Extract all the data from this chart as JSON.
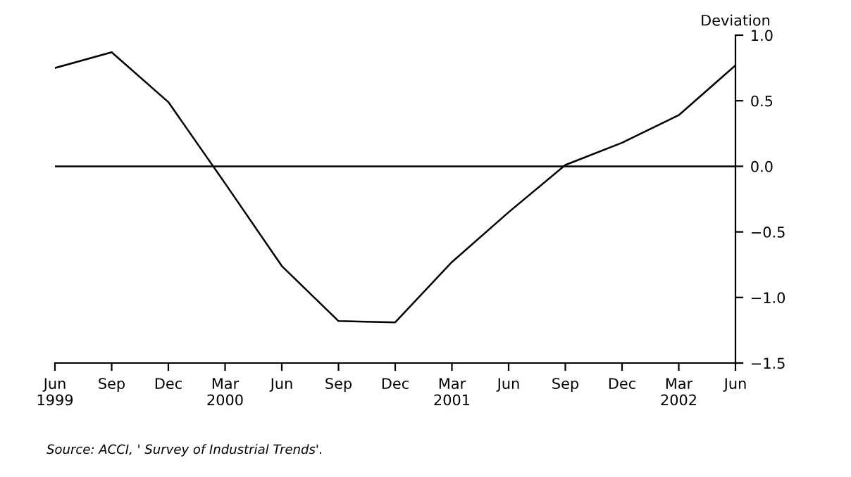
{
  "chart_data": {
    "type": "line",
    "ylabel": "Deviation",
    "categories": [
      "Jun\n1999",
      "Sep",
      "Dec",
      "Mar\n2000",
      "Jun",
      "Sep",
      "Dec",
      "Mar\n2001",
      "Jun",
      "Sep",
      "Dec",
      "Mar\n2002",
      "Jun"
    ],
    "series": [
      {
        "color": "#000000",
        "values": [
          0.75,
          0.87,
          0.49,
          -0.13,
          -0.76,
          -1.18,
          -1.19,
          -0.73,
          -0.35,
          0.01,
          0.18,
          0.39,
          0.77
        ]
      }
    ],
    "ylim": [
      -1.5,
      1.0
    ],
    "yticks": [
      {
        "value": -1.5,
        "label": "−1.5"
      },
      {
        "value": -1.0,
        "label": "−1.0"
      },
      {
        "value": -0.5,
        "label": "−0.5"
      },
      {
        "value": 0.0,
        "label": "0.0"
      },
      {
        "value": 0.5,
        "label": "0.5"
      },
      {
        "value": 1.0,
        "label": "1.0"
      }
    ],
    "ref_lines": [
      {
        "axis": "y",
        "value": 0,
        "color": "#000000"
      }
    ],
    "grid": false,
    "legend": false,
    "marker": "none",
    "line_style": "solid",
    "annotations": [
      "Source: ACCI, ' Survey of Industrial Trends'."
    ]
  }
}
